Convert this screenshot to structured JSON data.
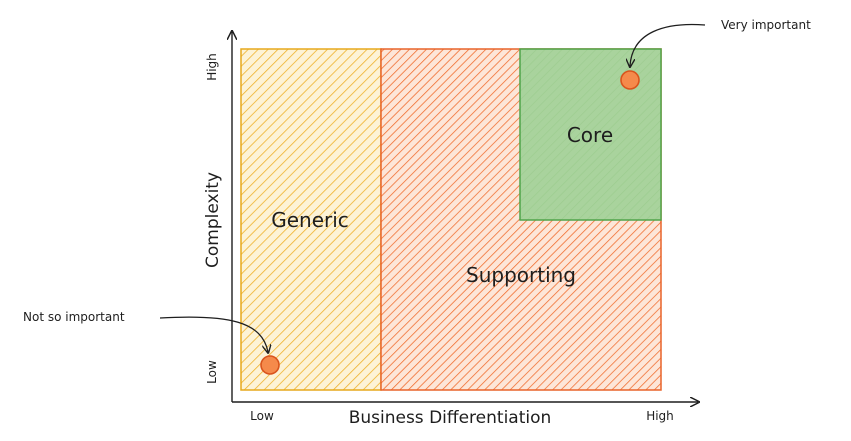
{
  "diagram": {
    "axes": {
      "x_title": "Business Differentiation",
      "y_title": "Complexity",
      "x_low": "Low",
      "x_high": "High",
      "y_low": "Low",
      "y_high": "High"
    },
    "regions": {
      "generic": {
        "label": "Generic",
        "color": "#f0b429"
      },
      "supporting": {
        "label": "Supporting",
        "color": "#f4712b"
      },
      "core": {
        "label": "Core",
        "color": "#5fb45a"
      }
    },
    "annotations": {
      "not_so_important": "Not so important",
      "very_important": "Very important"
    }
  }
}
